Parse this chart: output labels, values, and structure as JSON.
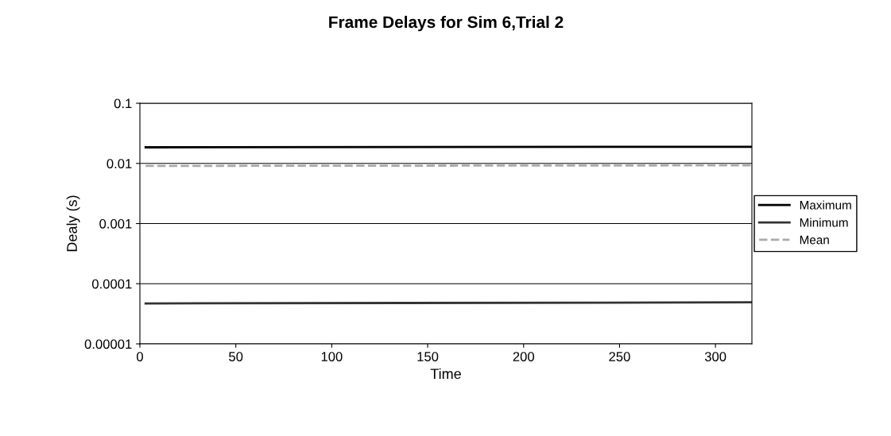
{
  "chart_data": {
    "type": "line",
    "title": "Frame Delays for Sim 6,Trial 2",
    "xlabel": "Time",
    "ylabel": "Dealy (s)",
    "x": [
      3,
      319
    ],
    "series": [
      {
        "name": "Maximum",
        "color": "#000000",
        "values": [
          0.0185,
          0.0189
        ],
        "line_style": "solid"
      },
      {
        "name": "Minimum",
        "color": "#333333",
        "values": [
          4.7e-05,
          4.9e-05
        ],
        "line_style": "solid"
      },
      {
        "name": "Mean",
        "color": "#aaaaaa",
        "values": [
          0.0091,
          0.0093
        ],
        "line_style": "dashed"
      }
    ],
    "log": "y",
    "xlim": [
      0,
      319
    ],
    "xticks": [
      0,
      50,
      100,
      150,
      200,
      250,
      300
    ],
    "ylim": [
      1e-05,
      0.1
    ],
    "yticks": [
      {
        "value": 1e-05,
        "label": "0.00001"
      },
      {
        "value": 0.0001,
        "label": "0.0001"
      },
      {
        "value": 0.001,
        "label": "0.001"
      },
      {
        "value": 0.01,
        "label": "0.01"
      },
      {
        "value": 0.1,
        "label": "0.1"
      }
    ],
    "grid": "y",
    "legend": "right",
    "marker": "none"
  }
}
